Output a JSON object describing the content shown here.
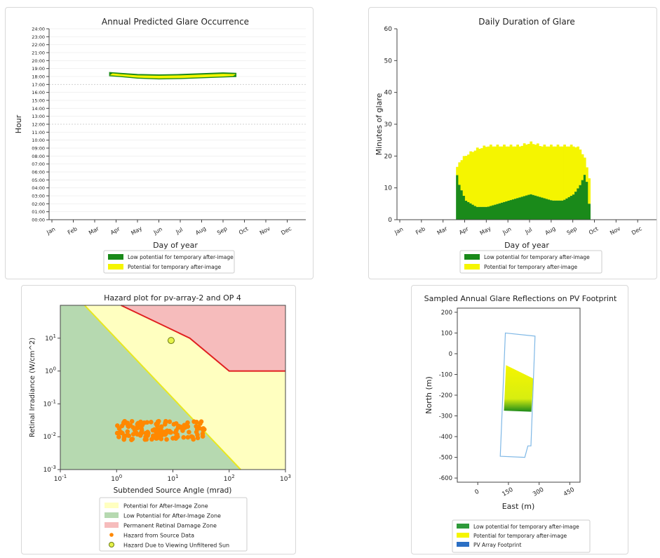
{
  "chart_data": [
    {
      "type": "scatter",
      "title": "Annual Predicted Glare Occurrence",
      "xlabel": "Day of year",
      "ylabel": "Hour",
      "x_ticks": [
        "Jan",
        "Feb",
        "Mar",
        "Apr",
        "May",
        "Jun",
        "Jul",
        "Aug",
        "Sep",
        "Oct",
        "Nov",
        "Dec"
      ],
      "y_ticks": [
        "00:00",
        "01:00",
        "02:00",
        "03:00",
        "04:00",
        "05:00",
        "06:00",
        "07:00",
        "08:00",
        "09:00",
        "10:00",
        "11:00",
        "12:00",
        "13:00",
        "14:00",
        "15:00",
        "16:00",
        "17:00",
        "18:00",
        "19:00",
        "20:00",
        "21:00",
        "22:00",
        "23:00",
        "24:00"
      ],
      "ylim": [
        0,
        24
      ],
      "band": {
        "x": [
          2.7,
          3.2,
          4.0,
          5.0,
          6.0,
          7.0,
          8.0,
          8.6
        ],
        "y_top": [
          18.5,
          18.4,
          18.25,
          18.2,
          18.25,
          18.35,
          18.45,
          18.4
        ],
        "y_bottom": [
          18.1,
          18.0,
          17.8,
          17.7,
          17.75,
          17.85,
          17.95,
          18.0
        ]
      },
      "legend": [
        "Low potential for temporary after-image",
        "Potential for temporary after-image"
      ],
      "colors": {
        "low": "#1a8a1a",
        "potential": "#f5f500"
      }
    },
    {
      "type": "bar",
      "title": "Daily Duration of Glare",
      "xlabel": "Day of year",
      "ylabel": "Minutes of glare",
      "x_ticks": [
        "Jan",
        "Feb",
        "Mar",
        "Apr",
        "May",
        "Jun",
        "Jul",
        "Aug",
        "Sep",
        "Oct",
        "Nov",
        "Dec"
      ],
      "y_ticks": [
        "0",
        "10",
        "20",
        "30",
        "40",
        "50",
        "60"
      ],
      "ylim": [
        0,
        60
      ],
      "series": [
        {
          "name": "Low potential for temporary after-image",
          "x": [
            2.6,
            2.7,
            3.0,
            3.5,
            4.0,
            4.5,
            5.0,
            5.5,
            6.0,
            6.5,
            7.0,
            7.5,
            8.0,
            8.3,
            8.55,
            8.7
          ],
          "values": [
            14,
            11,
            6,
            4,
            4,
            5,
            6,
            7,
            8,
            7,
            6,
            6,
            8,
            11,
            15,
            5
          ]
        },
        {
          "name": "Potential for temporary after-image",
          "x": [
            2.6,
            2.7,
            3.0,
            3.5,
            4.0,
            4.5,
            5.0,
            5.5,
            6.0,
            6.5,
            7.0,
            7.5,
            8.0,
            8.3,
            8.55,
            8.7
          ],
          "values": [
            16,
            18,
            20,
            22,
            23,
            23,
            23,
            23,
            24,
            23,
            23,
            23,
            23,
            22,
            18,
            13
          ]
        }
      ],
      "legend": [
        "Low potential for temporary after-image",
        "Potential for temporary after-image"
      ]
    },
    {
      "type": "scatter",
      "title": "Hazard plot for pv-array-2 and OP 4",
      "xlabel": "Subtended Source Angle (mrad)",
      "ylabel": "Retinal Irradiance (W/cm^2)",
      "x_scale": "log",
      "y_scale": "log",
      "xlim": [
        0.1,
        1000
      ],
      "ylim": [
        0.001,
        100
      ],
      "x_ticks": [
        "10^-1",
        "10^0",
        "10^1",
        "10^2",
        "10^3"
      ],
      "y_ticks": [
        "10^-3",
        "10^-2",
        "10^-1",
        "10^0",
        "10^1"
      ],
      "green_yellow_boundary": [
        [
          0.27,
          100
        ],
        [
          160,
          0.001
        ]
      ],
      "damage_boundary": [
        [
          1.2,
          100
        ],
        [
          20,
          10
        ],
        [
          100,
          1
        ],
        [
          1000,
          1
        ]
      ],
      "source_data": {
        "x_range": [
          1,
          40
        ],
        "y_range": [
          0.008,
          0.03
        ]
      },
      "unfiltered_sun": {
        "x": 9.3,
        "y": 8.5
      },
      "legend": [
        "Potential for After-Image Zone",
        "Low Potential for After-Image Zone",
        "Permanent Retinal Damage Zone",
        "Hazard from Source Data",
        "Hazard Due to Viewing Unfiltered Sun"
      ],
      "colors": {
        "yellow_zone": "#ffffc0",
        "green_zone": "#b6d9b0",
        "red_zone": "#f6bcbc",
        "red_line": "#e02020",
        "points": "#ff8800"
      }
    },
    {
      "type": "area",
      "title": "Sampled Annual Glare Reflections on PV Footprint",
      "xlabel": "East (m)",
      "ylabel": "North (m)",
      "x_ticks": [
        "0",
        "150",
        "300",
        "450"
      ],
      "y_ticks": [
        "200",
        "100",
        "0",
        "-100",
        "-200",
        "-300",
        "-400",
        "-500",
        "-600"
      ],
      "xlim": [
        -100,
        500
      ],
      "ylim": [
        -620,
        220
      ],
      "footprint": [
        [
          135,
          100
        ],
        [
          280,
          85
        ],
        [
          260,
          -445
        ],
        [
          245,
          -445
        ],
        [
          230,
          -500
        ],
        [
          110,
          -495
        ]
      ],
      "glare_region": [
        [
          138,
          -55
        ],
        [
          272,
          -120
        ],
        [
          262,
          -280
        ],
        [
          128,
          -275
        ]
      ],
      "legend": [
        "Low potential for temporary after-image",
        "Potential for temporary after-image",
        "PV Array Footprint"
      ],
      "colors": {
        "footprint": "#7fb8e6",
        "legend_footprint": "#2b6fc4"
      }
    }
  ]
}
